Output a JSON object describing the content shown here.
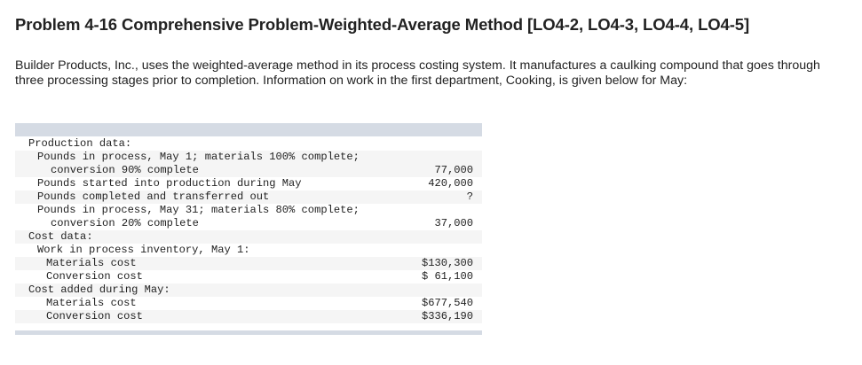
{
  "problem": {
    "title": "Problem 4-16 Comprehensive Problem-Weighted-Average Method [LO4-2, LO4-3, LO4-4, LO4-5]",
    "intro": "Builder Products, Inc., uses the weighted-average method in its process costing system. It manufactures a caulking compound that goes through three processing stages prior to completion. Information on work in the first department, Cooking, is given below for May:"
  },
  "table": {
    "rows": [
      {
        "label": "Production data:",
        "value": "",
        "indent": 0,
        "shade": false
      },
      {
        "label": "Pounds in process, May 1; materials 100% complete;",
        "value": "",
        "indent": 1,
        "shade": true
      },
      {
        "label": "conversion 90% complete",
        "value": "77,000",
        "indent": 3,
        "shade": true
      },
      {
        "label": "Pounds started into production during May",
        "value": "420,000",
        "indent": 1,
        "shade": false
      },
      {
        "label": "Pounds completed and transferred out",
        "value": "?",
        "indent": 1,
        "shade": true
      },
      {
        "label": "Pounds in process, May 31; materials 80% complete;",
        "value": "",
        "indent": 1,
        "shade": false
      },
      {
        "label": "conversion 20% complete",
        "value": "37,000",
        "indent": 3,
        "shade": false
      },
      {
        "label": "Cost data:",
        "value": "",
        "indent": 0,
        "shade": true
      },
      {
        "label": "Work in process inventory, May 1:",
        "value": "",
        "indent": 1,
        "shade": false
      },
      {
        "label": "Materials cost",
        "value": "$130,300",
        "indent": 2,
        "shade": true
      },
      {
        "label": "Conversion cost",
        "value": "$ 61,100",
        "indent": 2,
        "shade": false
      },
      {
        "label": "Cost added during May:",
        "value": "",
        "indent": 0,
        "shade": true
      },
      {
        "label": "Materials cost",
        "value": "$677,540",
        "indent": 2,
        "shade": false
      },
      {
        "label": "Conversion cost",
        "value": "$336,190",
        "indent": 2,
        "shade": true
      }
    ]
  },
  "colors": {
    "header_bar": "#d5dbe4",
    "row_shade": "#f5f5f5",
    "text": "#222222"
  }
}
